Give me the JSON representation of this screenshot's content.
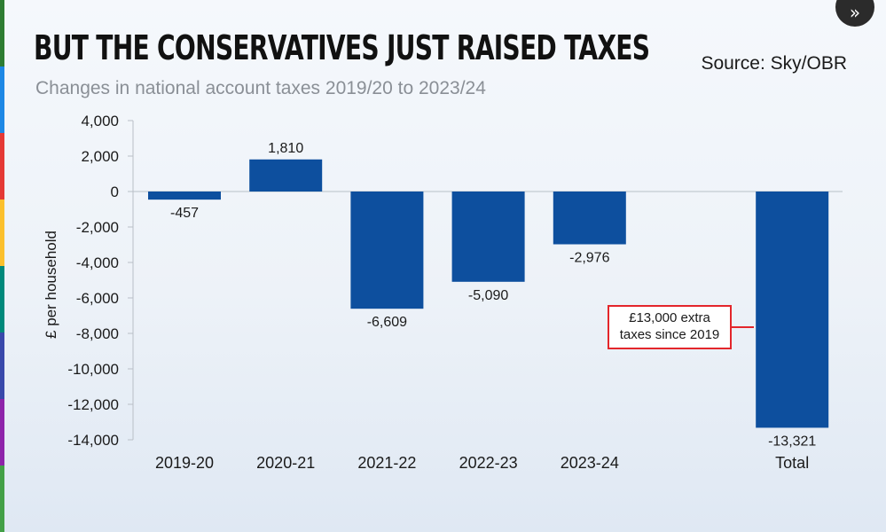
{
  "colors": {
    "bar": "#0d4f9e",
    "axis": "#b9bfc7",
    "text": "#1a1a1a",
    "subtitle": "#8a8f96",
    "callout": "#e3262b",
    "stripe": [
      "#2e7d32",
      "#1e88e5",
      "#e53935",
      "#fbc02d",
      "#00897b",
      "#3949ab",
      "#8e24aa",
      "#43a047"
    ]
  },
  "header": {
    "title": "BUT THE CONSERVATIVES JUST RAISED TAXES",
    "source": "Source: Sky/OBR",
    "subtitle": "Changes in national account taxes 2019/20 to 2023/24"
  },
  "controls": {
    "forward_icon": "double-chevron-right-icon",
    "forward_glyph": "»"
  },
  "chart_data": {
    "type": "bar",
    "title": "BUT THE CONSERVATIVES JUST RAISED TAXES",
    "subtitle": "Changes in national account taxes 2019/20 to 2023/24",
    "ylabel": "£ per household",
    "xlabel": "",
    "ylim": [
      -14000,
      4000
    ],
    "yticks": [
      4000,
      2000,
      0,
      -2000,
      -4000,
      -6000,
      -8000,
      -10000,
      -12000,
      -14000
    ],
    "ytick_labels": [
      "4,000",
      "2,000",
      "0",
      "-2,000",
      "-4,000",
      "-6,000",
      "-8,000",
      "-10,000",
      "-12,000",
      "-14,000"
    ],
    "categories": [
      "2019-20",
      "2020-21",
      "2021-22",
      "2022-23",
      "2023-24",
      "",
      "Total"
    ],
    "values": [
      -457,
      1810,
      -6609,
      -5090,
      -2976,
      null,
      -13321
    ],
    "value_labels": [
      "-457",
      "1,810",
      "-6,609",
      "-5,090",
      "-2,976",
      "",
      "-13,321"
    ],
    "grid": false,
    "annotation": {
      "lines": [
        "£13,000 extra",
        "taxes since 2019"
      ],
      "target": "Total"
    }
  }
}
